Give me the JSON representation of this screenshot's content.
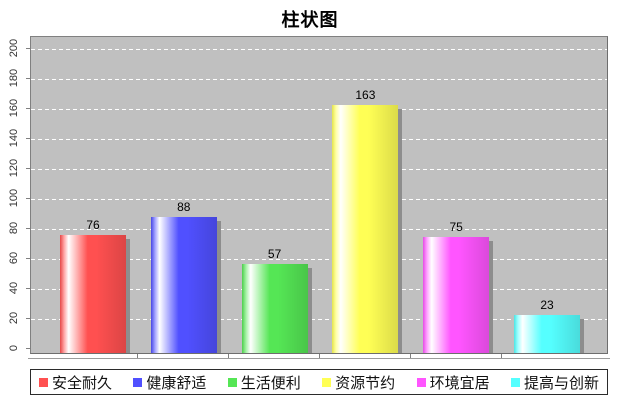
{
  "page": {
    "background": "#ffffff"
  },
  "chart_data": {
    "type": "bar",
    "title": "柱状图",
    "categories": [
      "安全耐久",
      "健康舒适",
      "生活便利",
      "资源节约",
      "环境宜居",
      "提高与创新"
    ],
    "values": [
      76,
      88,
      57,
      163,
      75,
      23
    ],
    "colors": [
      "#ff5050",
      "#5050ff",
      "#55e655",
      "#ffff55",
      "#ff55ff",
      "#55ffff"
    ],
    "value_labels": [
      "76",
      "88",
      "57",
      "163",
      "75",
      "23"
    ],
    "xlabel": "",
    "ylabel": "",
    "ylim": [
      0,
      200
    ],
    "yticks": [
      0,
      20,
      40,
      60,
      80,
      100,
      120,
      140,
      160,
      180,
      200
    ],
    "grid": {
      "direction": "horizontal",
      "style": "dashed",
      "color": "#ffffff"
    },
    "plot_background": "#c0c0c0",
    "shadow_color": "#8d8d8d",
    "legend_position": "bottom",
    "legend_text_color": "#111111"
  }
}
